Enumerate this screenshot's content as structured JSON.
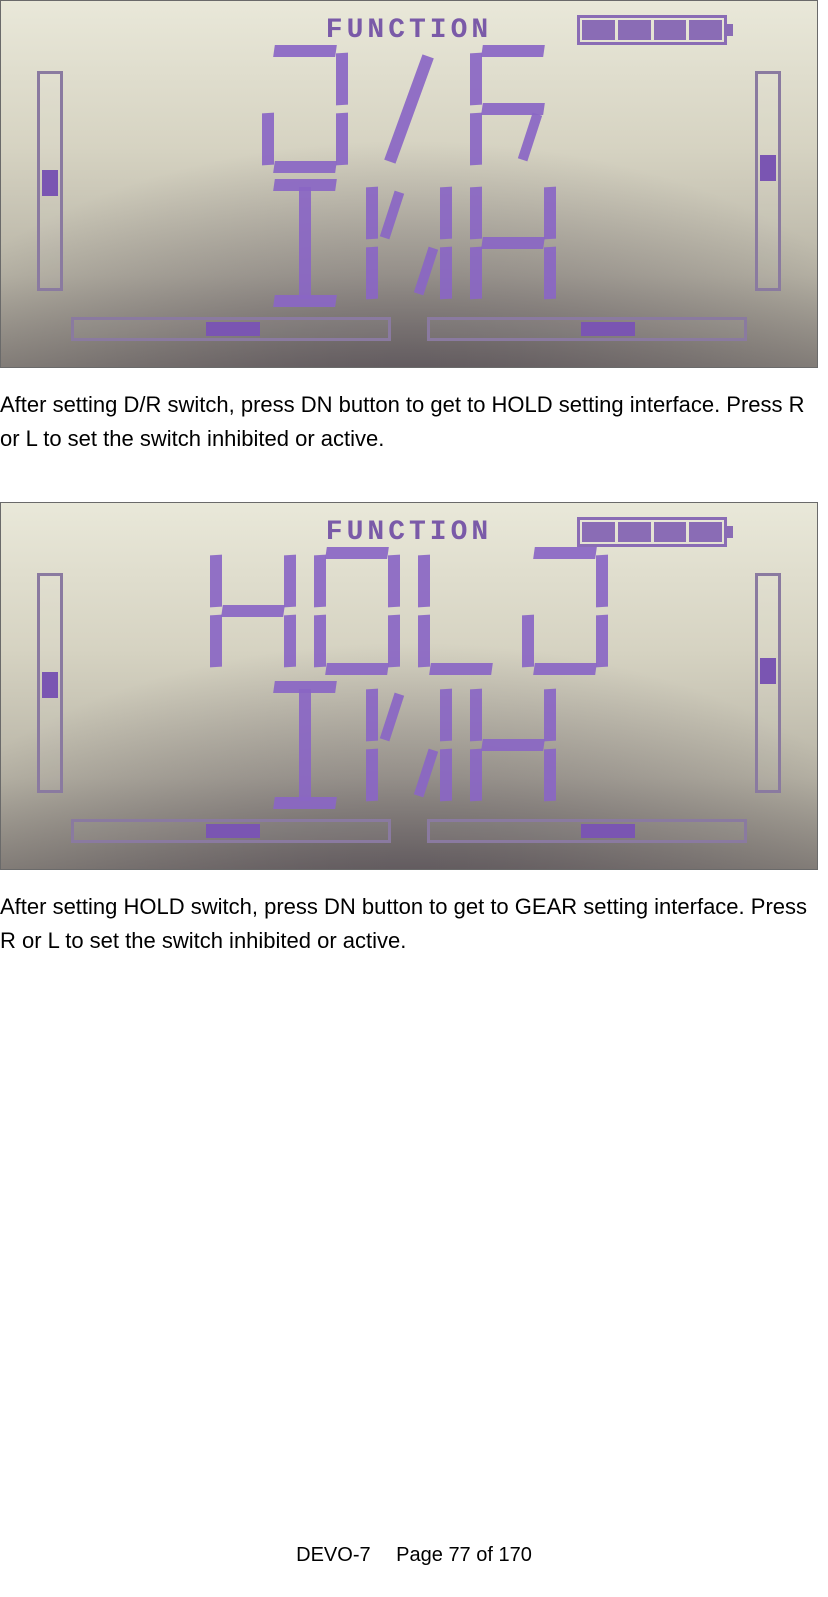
{
  "screens": [
    {
      "header": "FUNCTION",
      "battery_cells": 4,
      "line1_chars": [
        "D",
        "slash",
        "R"
      ],
      "line2_chars": [
        "I",
        "N",
        "H"
      ],
      "left_v_mark_top_pct": 45,
      "right_v_mark_top_pct": 38,
      "left_h_mark_left_pct": 42,
      "right_h_mark_left_pct": 48,
      "seg_color": "#8a66c4",
      "frame_color": "#8a7aa0",
      "bg_top": "#e9e8d9",
      "bg_bottom": "#8d8880"
    },
    {
      "header": "FUNCTION",
      "battery_cells": 4,
      "line1_chars": [
        "H",
        "O",
        "L",
        "D"
      ],
      "line2_chars": [
        "I",
        "N",
        "H"
      ],
      "left_v_mark_top_pct": 45,
      "right_v_mark_top_pct": 38,
      "left_h_mark_left_pct": 42,
      "right_h_mark_left_pct": 48,
      "seg_color": "#8a66c4",
      "frame_color": "#8a7aa0",
      "bg_top": "#e9e8d9",
      "bg_bottom": "#8d8880"
    }
  ],
  "paragraphs": {
    "p1": "After setting D/R switch, press DN button to get to HOLD setting interface. Press R or L to set the switch inhibited or active.",
    "p2": "After setting HOLD switch, press DN button to get to GEAR setting interface. Press R or L to set the switch inhibited or active."
  },
  "footer": {
    "model": "DEVO-7",
    "page_label": "Page 77 of 170"
  },
  "typography": {
    "body_font": "Arial",
    "body_size_pt": 16,
    "lcd_header_font": "Courier New",
    "lcd_header_size_pt": 21
  },
  "colors": {
    "page_bg": "#ffffff",
    "text": "#000000",
    "lcd_segment": "#8a66c4",
    "lcd_frame": "#8a7aa0",
    "lcd_header_text": "#7a5aa8"
  }
}
